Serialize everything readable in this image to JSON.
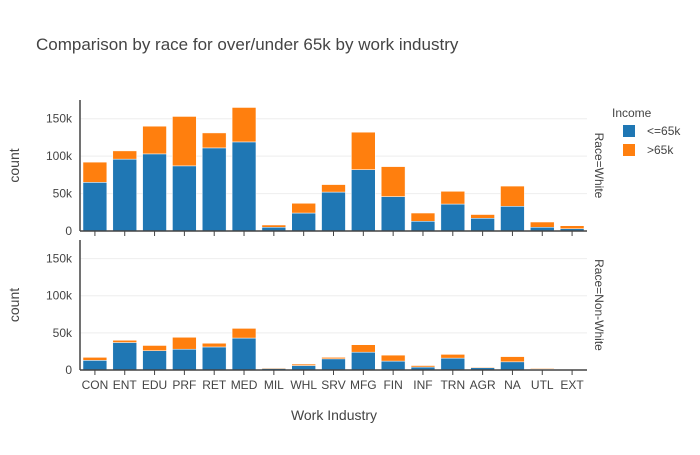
{
  "chart_data": {
    "type": "bar",
    "title": "Comparison by race for over/under 65k by work industry",
    "xlabel": "Work Industry",
    "ylabel": "count",
    "ylim": [
      0,
      175000
    ],
    "yticks": [
      {
        "value": 0,
        "label": "0"
      },
      {
        "value": 50000,
        "label": "50k"
      },
      {
        "value": 100000,
        "label": "100k"
      },
      {
        "value": 150000,
        "label": "150k"
      }
    ],
    "barmode": "stack",
    "legend": {
      "title": "Income",
      "position": "right"
    },
    "categories": [
      "CON",
      "ENT",
      "EDU",
      "PRF",
      "RET",
      "MED",
      "MIL",
      "WHL",
      "SRV",
      "MFG",
      "FIN",
      "INF",
      "TRN",
      "AGR",
      "NA",
      "UTL",
      "EXT"
    ],
    "series_meta": [
      {
        "name": "<=65k",
        "color": "#1f77b4"
      },
      {
        "name": ">65k",
        "color": "#ff7f0e"
      }
    ],
    "facets": [
      {
        "label": "Race=White",
        "series": [
          {
            "name": "<=65k",
            "values": [
              65000,
              96000,
              103000,
              87000,
              111000,
              119000,
              5000,
              24000,
              52000,
              82000,
              46000,
              13000,
              36000,
              17000,
              33000,
              5000,
              3000
            ]
          },
          {
            "name": ">65k",
            "values": [
              27000,
              11000,
              37000,
              66000,
              20000,
              46000,
              3000,
              13000,
              10000,
              50000,
              40000,
              11000,
              17000,
              5000,
              27000,
              7000,
              4000
            ]
          }
        ]
      },
      {
        "label": "Race=Non-White",
        "series": [
          {
            "name": "<=65k",
            "values": [
              13000,
              37000,
              26000,
              28000,
              31000,
              43000,
              2000,
              6000,
              15000,
              24000,
              12000,
              4000,
              16000,
              3000,
              11000,
              1000,
              1000
            ]
          },
          {
            "name": ">65k",
            "values": [
              4000,
              3000,
              7000,
              16000,
              5000,
              13000,
              1000,
              2000,
              2000,
              10000,
              8000,
              2000,
              5000,
              1000,
              7000,
              1000,
              0
            ]
          }
        ]
      }
    ]
  }
}
